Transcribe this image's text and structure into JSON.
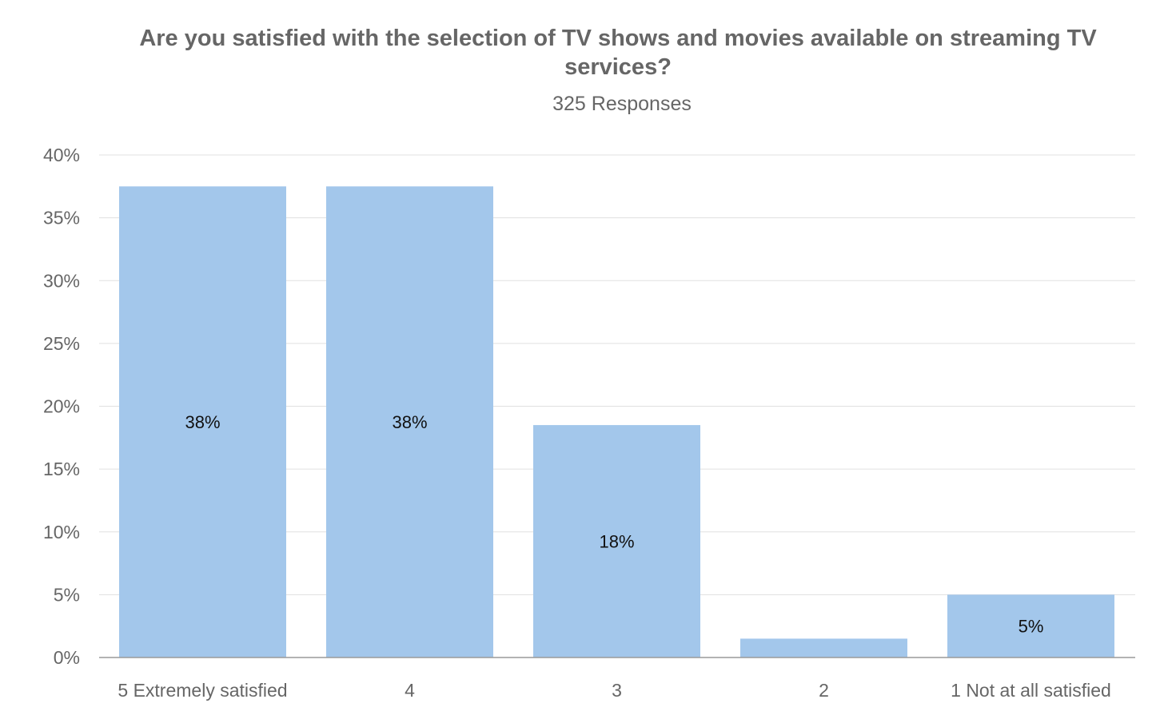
{
  "chart_data": {
    "type": "bar",
    "title": "Are you satisfied with the selection of TV shows and movies available on streaming TV services?",
    "subtitle": "325 Responses",
    "categories": [
      "5 Extremely satisfied",
      "4",
      "3",
      "2",
      "1 Not at all satisfied"
    ],
    "values": [
      37.5,
      37.5,
      18.5,
      1.5,
      5.0
    ],
    "data_labels": [
      "38%",
      "38%",
      "18%",
      "",
      "5%"
    ],
    "ylim": [
      0,
      40
    ],
    "yticks": [
      0,
      5,
      10,
      15,
      20,
      25,
      30,
      35,
      40
    ],
    "ytick_format": "%",
    "grid": true,
    "bar_color": "#a3c7eb",
    "grid_color": "#e0e0e0",
    "axis_color": "#9a9a9a"
  }
}
